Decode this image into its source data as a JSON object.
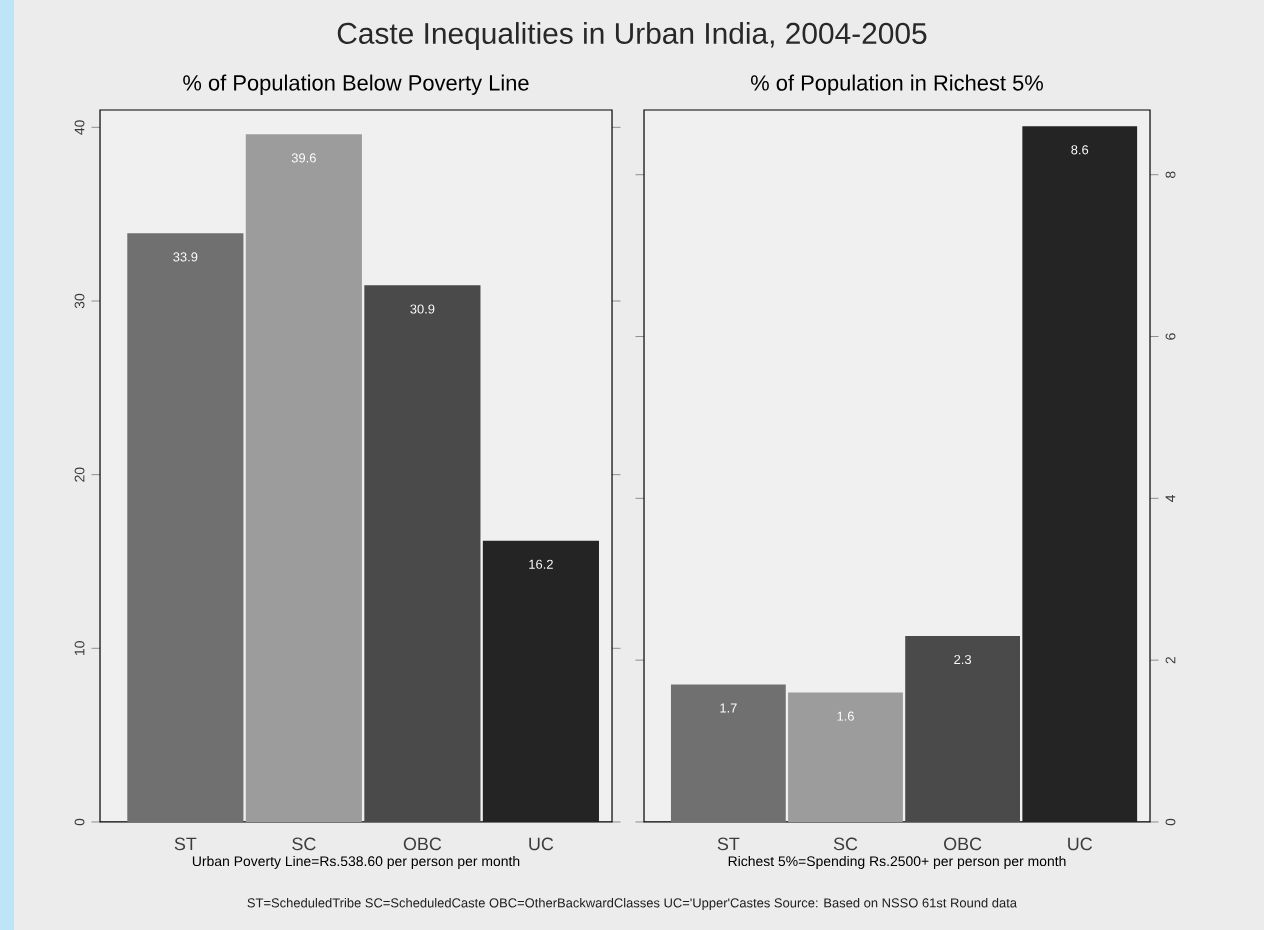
{
  "chart_data": [
    {
      "type": "bar",
      "title": "Caste Inequalities in Urban India, 2004-2005",
      "subtitle": "% of Population Below Poverty Line",
      "xlabel": "Urban Poverty Line=Rs.538.60 per person per month",
      "categories": [
        "ST",
        "SC",
        "OBC",
        "UC"
      ],
      "values": [
        33.9,
        39.6,
        30.9,
        16.2
      ],
      "colors": [
        "#707070",
        "#9c9c9c",
        "#4a4a4a",
        "#242424"
      ],
      "ylim": [
        0,
        41
      ],
      "yticks": [
        0,
        10,
        20,
        30,
        40
      ],
      "data_labels": true,
      "annotations": [
        "ST=ScheduledTribe SC=ScheduledCaste OBC=OtherBackwardClasses UC='Upper'Castes  Source: Based on NSSO 61st Round data"
      ]
    },
    {
      "type": "bar",
      "subtitle": "% of Population in Richest 5%",
      "xlabel": "Richest 5%=Spending Rs.2500+ per person per month",
      "categories": [
        "ST",
        "SC",
        "OBC",
        "UC"
      ],
      "values": [
        1.7,
        1.6,
        2.3,
        8.6
      ],
      "colors": [
        "#707070",
        "#9c9c9c",
        "#4a4a4a",
        "#242424"
      ],
      "ylim": [
        0,
        8.8
      ],
      "yticks": [
        0,
        2,
        4,
        6,
        8
      ],
      "data_labels": true
    }
  ]
}
